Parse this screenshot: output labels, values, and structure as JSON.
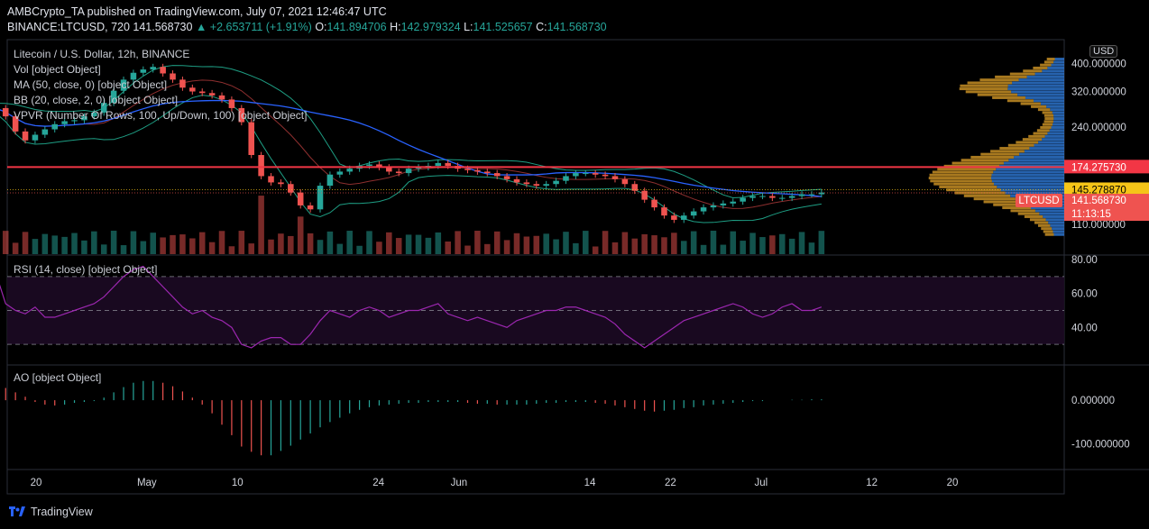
{
  "header": {
    "publisher_line": "AMBCrypto_TA published on TradingView.com, July 07, 2021 12:46:47 UTC",
    "symbol": "BINANCE:LTCUSD, 720",
    "price": "141.568730",
    "change": "▲ +2.653711 (+1.91%)",
    "o_label": "O:",
    "o": "141.894706",
    "h_label": "H:",
    "h": "142.979324",
    "l_label": "L:",
    "l": "141.525657",
    "c_label": "C:",
    "c": "141.568730"
  },
  "legend": {
    "title": "Litecoin / U.S. Dollar, 12h, BINANCE",
    "vol": "Vol [object Object]",
    "ma": "MA (50, close, 0) [object Object]",
    "bb": "BB (20, close, 2, 0) [object Object]",
    "vpvr": "VPVR (Number Of Rows, 100, Up/Down, 100) [object Object]",
    "rsi": "RSI (14, close) [object Object]",
    "ao": "AO [object Object]"
  },
  "axis_currency": "USD",
  "footer": {
    "brand": "TradingView"
  },
  "colors": {
    "up": "#26a69a",
    "down": "#ef5350",
    "ma": "#2962ff",
    "bb": "#1e9e84",
    "resistance": "#f23645",
    "rsi": "#9c27b0",
    "vpvr_up": "#2f7bd8",
    "vpvr_down": "#e0a22a"
  },
  "chart_data": [
    {
      "type": "candlestick",
      "title": "Litecoin / U.S. Dollar, 12h, BINANCE",
      "y_axis_scale": "log",
      "y_ticks": [
        "400.000000",
        "320.000000",
        "240.000000",
        "110.000000"
      ],
      "ylim": [
        100,
        420
      ],
      "x_ticks": [
        "20",
        "May",
        "10",
        "24",
        "Jun",
        "14",
        "22",
        "Jul",
        "12",
        "20"
      ],
      "x_tick_dates": [
        "2021-04-20",
        "2021-05-01",
        "2021-05-10",
        "2021-05-24",
        "2021-06-01",
        "2021-06-14",
        "2021-06-22",
        "2021-07-01",
        "2021-07-12",
        "2021-07-20"
      ],
      "close_series": [
        280,
        262,
        232,
        216,
        226,
        236,
        246,
        252,
        254,
        262,
        270,
        292,
        322,
        352,
        372,
        382,
        390,
        370,
        352,
        330,
        320,
        316,
        310,
        300,
        280,
        250,
        192,
        162,
        154,
        152,
        142,
        128,
        124,
        150,
        164,
        168,
        172,
        176,
        178,
        174,
        168,
        166,
        172,
        174,
        176,
        180,
        176,
        172,
        170,
        168,
        166,
        162,
        158,
        154,
        152,
        150,
        152,
        156,
        162,
        166,
        166,
        164,
        162,
        158,
        152,
        144,
        134,
        126,
        118,
        114,
        118,
        122,
        126,
        128,
        130,
        132,
        136,
        138,
        138,
        136,
        136,
        138,
        140,
        140,
        142
      ],
      "price_labels": [
        {
          "value": 174.27573,
          "label": "174.275730",
          "color": "#f23645"
        },
        {
          "value": 145.27887,
          "label": "145.278870",
          "color": "#f5c518"
        },
        {
          "value": 141.56873,
          "label": "LTCUSD",
          "color": "#ef5350"
        },
        {
          "value": 141.56873,
          "label": "141.568730",
          "color": "#ef5350"
        },
        {
          "value": 141.56873,
          "label": "11:13:15",
          "color": "#ef5350"
        }
      ],
      "horizontal_lines": [
        {
          "value": 174.27573,
          "color": "#f23645"
        }
      ],
      "series": [
        {
          "name": "Vol"
        },
        {
          "name": "MA (50, close, 0)"
        },
        {
          "name": "BB (20, close, 2, 0)"
        },
        {
          "name": "VPVR (Number Of Rows, 100, Up/Down, 100)"
        }
      ]
    },
    {
      "type": "line",
      "title": "RSI (14, close)",
      "y_ticks": [
        "80.00",
        "60.00",
        "40.00"
      ],
      "ylim": [
        20,
        80
      ],
      "bands": [
        70,
        50,
        30
      ],
      "values": [
        72,
        54,
        50,
        48,
        52,
        46,
        46,
        48,
        50,
        52,
        54,
        58,
        64,
        70,
        74,
        76,
        70,
        64,
        58,
        52,
        48,
        50,
        46,
        44,
        40,
        30,
        28,
        32,
        34,
        34,
        30,
        30,
        36,
        44,
        50,
        48,
        46,
        50,
        52,
        50,
        46,
        48,
        50,
        50,
        52,
        54,
        48,
        46,
        44,
        46,
        44,
        42,
        40,
        44,
        46,
        48,
        50,
        50,
        52,
        52,
        50,
        48,
        46,
        42,
        36,
        32,
        28,
        32,
        36,
        40,
        44,
        46,
        48,
        50,
        52,
        54,
        52,
        48,
        46,
        48,
        52,
        54,
        50,
        50,
        52
      ]
    },
    {
      "type": "bar",
      "title": "AO",
      "y_ticks": [
        "0.000000",
        "-100.000000"
      ],
      "ylim": [
        -140,
        60
      ],
      "values": [
        30,
        28,
        18,
        8,
        -4,
        -10,
        -12,
        -10,
        -6,
        -4,
        -2,
        6,
        18,
        30,
        40,
        44,
        44,
        40,
        32,
        20,
        6,
        -10,
        -30,
        -56,
        -80,
        -106,
        -118,
        -126,
        -126,
        -116,
        -104,
        -90,
        -76,
        -62,
        -50,
        -40,
        -30,
        -22,
        -16,
        -12,
        -10,
        -8,
        -6,
        -6,
        -4,
        -4,
        -4,
        -4,
        -6,
        -8,
        -8,
        -10,
        -10,
        -10,
        -10,
        -8,
        -6,
        -6,
        -4,
        -4,
        -4,
        -6,
        -8,
        -12,
        -16,
        -20,
        -24,
        -26,
        -24,
        -22,
        -18,
        -16,
        -12,
        -10,
        -8,
        -6,
        -4,
        -2,
        -2,
        0,
        0,
        1,
        1,
        2,
        2
      ]
    }
  ]
}
